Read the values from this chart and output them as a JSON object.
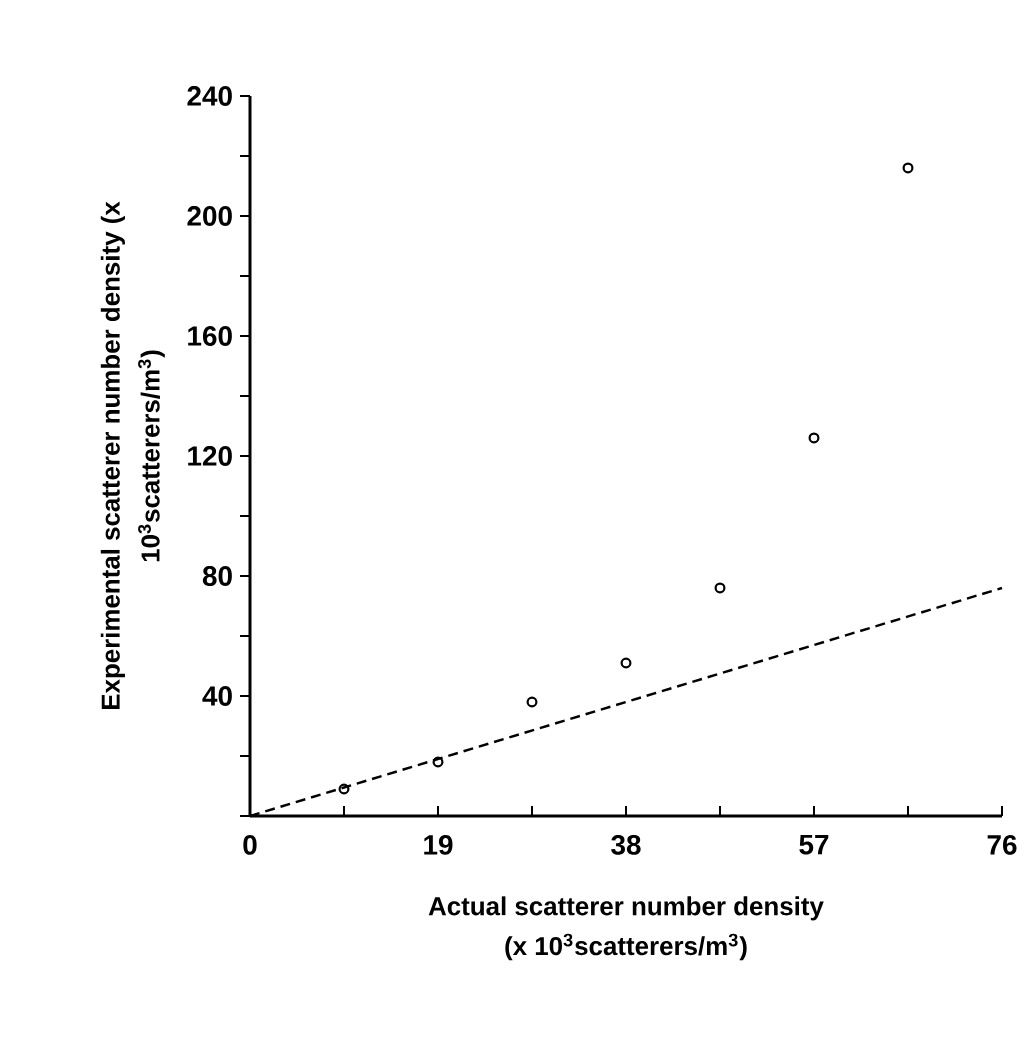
{
  "chart_data": {
    "type": "scatter",
    "xlabel": "Actual scatterer number density (x 10$^{3}$scatterers/m$^{3}$)",
    "ylabel": "Experimental scatterer number density (x 10$^{3}$scatterers/m$^{3}$)",
    "xlim": [
      0,
      76
    ],
    "ylim": [
      0,
      240
    ],
    "xticks": [
      0,
      {
        "value": 9.5,
        "label": null
      },
      19,
      {
        "value": 28.5,
        "label": null
      },
      38,
      {
        "value": 47.5,
        "label": null
      },
      57,
      {
        "value": 66.5,
        "label": null
      },
      76
    ],
    "yticks": [
      {
        "value": 0,
        "label": null
      },
      {
        "value": 20,
        "label": null
      },
      40,
      {
        "value": 60,
        "label": null
      },
      80,
      {
        "value": 100,
        "label": null
      },
      120,
      {
        "value": 140,
        "label": null
      },
      160,
      {
        "value": 180,
        "label": null
      },
      200,
      {
        "value": 220,
        "label": null
      },
      240
    ],
    "grid": false,
    "legend": false,
    "series": [
      {
        "color": "#000000",
        "marker": "circle",
        "x": [
          9.5,
          19,
          28.5,
          38,
          47.5,
          57,
          66.5
        ],
        "values": [
          9,
          18,
          38,
          51,
          76,
          126,
          216
        ]
      },
      {
        "type": "line",
        "color": "#000000",
        "line_style": "dashed",
        "marker": "none",
        "x": [
          0,
          76
        ],
        "values": [
          0,
          76
        ]
      }
    ]
  }
}
